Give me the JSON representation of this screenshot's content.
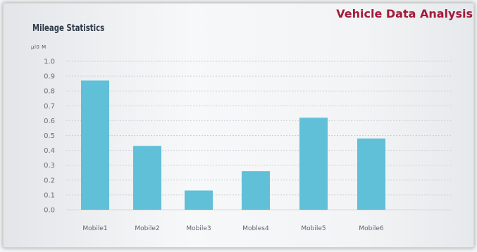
{
  "header": {
    "brand": "Vehicle Data Analysis",
    "chart_title": "Mileage Statistics",
    "units": "µl0   M"
  },
  "colors": {
    "bar": "#5fc0d8",
    "brand": "#a31a3a",
    "grid": "#cdd2d7"
  },
  "chart_data": {
    "type": "bar",
    "title": "Mileage Statistics",
    "categories": [
      "Mobile1",
      "Mobile2",
      "Mobile3",
      "Mobles4",
      "Mobile5",
      "Mobile6"
    ],
    "values": [
      0.87,
      0.43,
      0.13,
      0.26,
      0.62,
      0.48
    ],
    "ylim": [
      0,
      1.0
    ],
    "yticks": [
      "0.0",
      "0.1",
      "0.2",
      "0.3",
      "0.4",
      "0.5",
      "0.6",
      "0.7",
      "0.8",
      "0.9",
      "1.0"
    ],
    "grid": true,
    "xlabel": "",
    "ylabel": ""
  }
}
